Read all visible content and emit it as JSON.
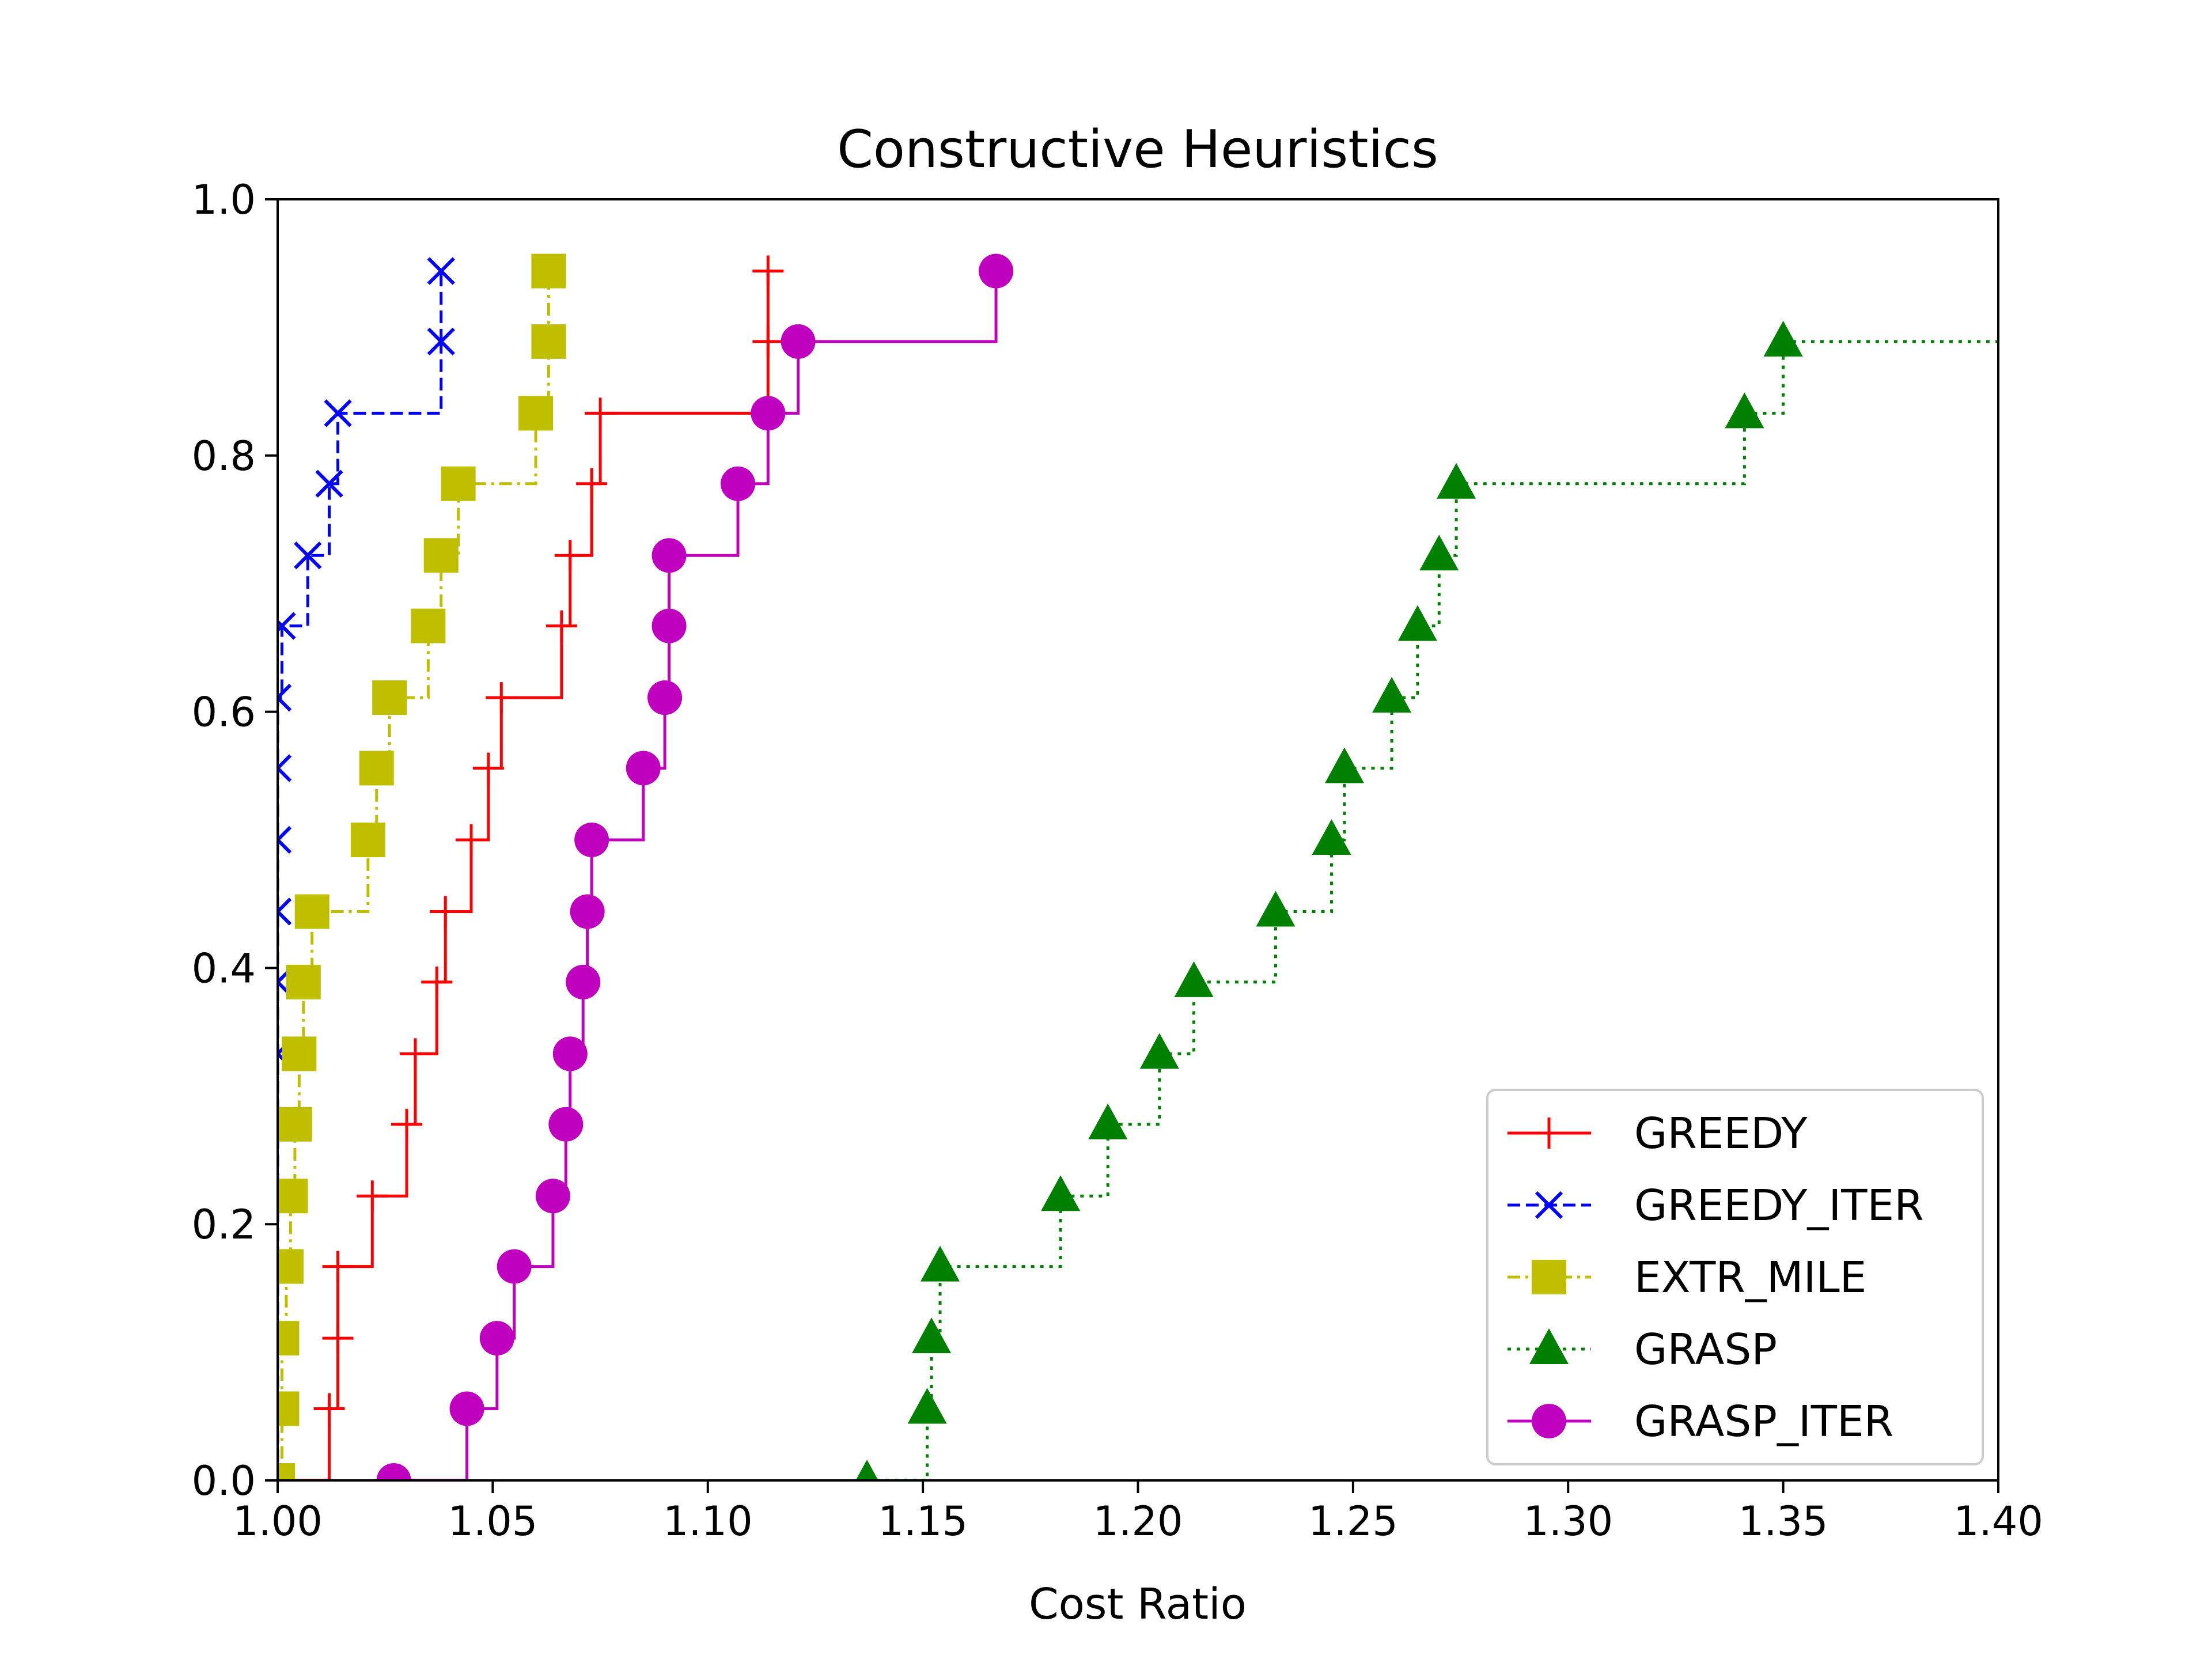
{
  "chart_data": {
    "type": "line",
    "title": "Constructive Heuristics",
    "xlabel": "Cost Ratio",
    "ylabel": "",
    "xlim": [
      1.0,
      1.4
    ],
    "ylim": [
      0.0,
      1.0
    ],
    "xticks": [
      1.0,
      1.05,
      1.1,
      1.15,
      1.2,
      1.25,
      1.3,
      1.35,
      1.4
    ],
    "xtick_labels": [
      "1.00",
      "1.05",
      "1.10",
      "1.15",
      "1.20",
      "1.25",
      "1.30",
      "1.35",
      "1.40"
    ],
    "yticks": [
      0.0,
      0.2,
      0.4,
      0.6,
      0.8,
      1.0
    ],
    "ytick_labels": [
      "0.0",
      "0.2",
      "0.4",
      "0.6",
      "0.8",
      "1.0"
    ],
    "grid": false,
    "legend_position": "bottom-right",
    "step": "post",
    "series": [
      {
        "name": "GREEDY",
        "color": "#ff0000",
        "linestyle": "solid",
        "marker": "plus",
        "x": [
          1.0,
          1.012,
          1.014,
          1.014,
          1.022,
          1.03,
          1.032,
          1.037,
          1.039,
          1.045,
          1.049,
          1.052,
          1.066,
          1.068,
          1.073,
          1.075,
          1.114
        ],
        "y": [
          0.0,
          0.056,
          0.111,
          0.167,
          0.222,
          0.278,
          0.333,
          0.389,
          0.444,
          0.5,
          0.556,
          0.611,
          0.667,
          0.722,
          0.778,
          0.833,
          0.889
        ]
      },
      {
        "name": "GREEDY_ITER",
        "color": "#0000ff",
        "linestyle": "dashed",
        "marker": "x",
        "x": [
          1.0,
          1.0,
          1.0,
          1.0,
          1.0,
          1.0,
          1.0,
          1.0,
          1.0,
          1.0,
          1.0,
          1.0,
          1.001,
          1.007,
          1.012,
          1.014,
          1.038
        ],
        "y": [
          0.0,
          0.056,
          0.111,
          0.167,
          0.222,
          0.278,
          0.333,
          0.389,
          0.444,
          0.5,
          0.556,
          0.611,
          0.667,
          0.722,
          0.778,
          0.833,
          0.889
        ]
      },
      {
        "name": "EXTR_MILE",
        "color": "#bfbf00",
        "linestyle": "dashdot",
        "marker": "square",
        "x": [
          1.0,
          1.001,
          1.001,
          1.002,
          1.003,
          1.004,
          1.005,
          1.006,
          1.008,
          1.021,
          1.023,
          1.026,
          1.035,
          1.038,
          1.042,
          1.06,
          1.063
        ],
        "y": [
          0.0,
          0.056,
          0.111,
          0.167,
          0.222,
          0.278,
          0.333,
          0.389,
          0.444,
          0.5,
          0.556,
          0.611,
          0.667,
          0.722,
          0.778,
          0.833,
          0.889
        ]
      },
      {
        "name": "GRASP",
        "color": "#008000",
        "linestyle": "dotted",
        "marker": "triangle",
        "x": [
          1.137,
          1.151,
          1.152,
          1.154,
          1.182,
          1.193,
          1.205,
          1.213,
          1.232,
          1.245,
          1.248,
          1.259,
          1.265,
          1.27,
          1.274,
          1.341,
          1.35
        ],
        "y": [
          0.0,
          0.056,
          0.111,
          0.167,
          0.222,
          0.278,
          0.333,
          0.389,
          0.444,
          0.5,
          0.556,
          0.611,
          0.667,
          0.722,
          0.778,
          0.833,
          0.889
        ]
      },
      {
        "name": "GRASP_ITER",
        "color": "#bf00bf",
        "linestyle": "solid",
        "marker": "circle",
        "x": [
          1.027,
          1.044,
          1.051,
          1.055,
          1.064,
          1.067,
          1.068,
          1.071,
          1.072,
          1.073,
          1.085,
          1.09,
          1.091,
          1.091,
          1.107,
          1.114,
          1.121,
          1.167
        ],
        "y": [
          0.0,
          0.056,
          0.111,
          0.167,
          0.222,
          0.278,
          0.333,
          0.389,
          0.444,
          0.5,
          0.556,
          0.611,
          0.667,
          0.722,
          0.778,
          0.833,
          0.889,
          0.944
        ]
      }
    ]
  }
}
